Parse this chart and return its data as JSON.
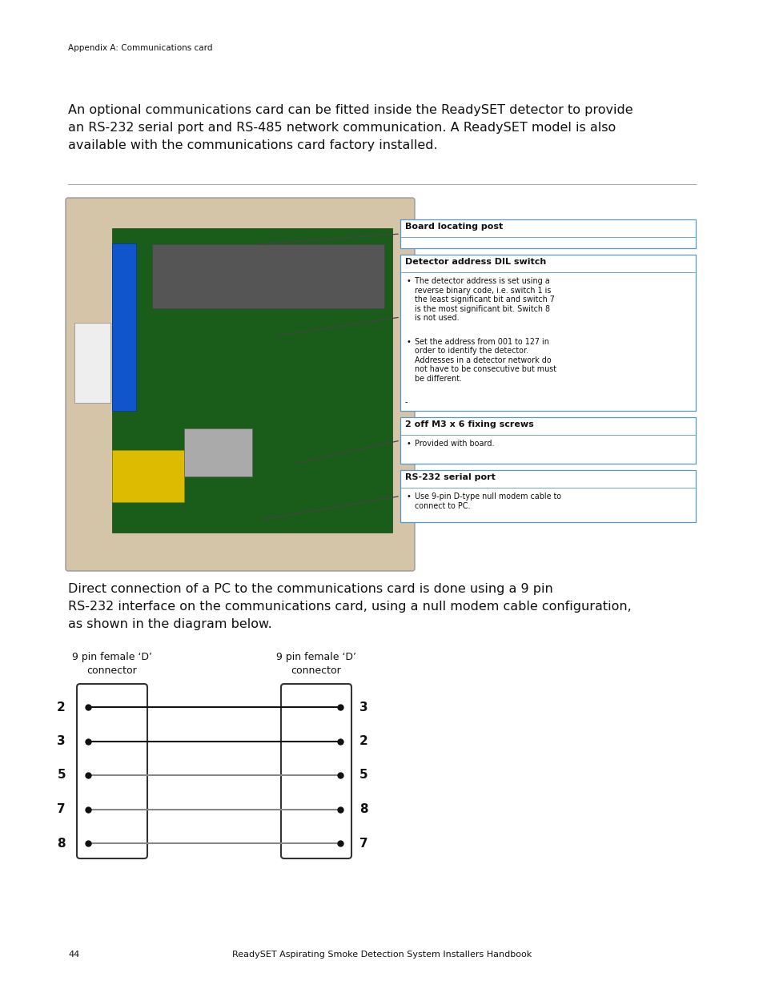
{
  "bg_color": "#ffffff",
  "page_width": 9.54,
  "page_height": 12.35,
  "dpi": 100,
  "header_text": "Appendix A: Communications card",
  "header_fontsize": 7.5,
  "intro_lines": [
    "An optional communications card can be fitted inside the ReadySET detector to provide",
    "an RS-232 serial port and RS-485 network communication. A ReadySET model is also",
    "available with the communications card factory installed."
  ],
  "intro_fontsize": 11.5,
  "direct_lines": [
    "Direct connection of a PC to the communications card is done using a 9 pin",
    "RS-232 interface on the communications card, using a null modem cable configuration,",
    "as shown in the diagram below."
  ],
  "direct_fontsize": 11.5,
  "box1_title": "Board locating post",
  "box2_title": "Detector address DIL switch",
  "box2_b1": "The detector address is set using a\nreverse binary code, i.e. switch 1 is\nthe least significant bit and switch 7\nis the most significant bit. Switch 8\nis not used.",
  "box2_b2": "Set the address from 001 to 127 in\norder to identify the detector.\nAddresses in a detector network do\nnot have to be consecutive but must\nbe different.",
  "box3_title": "2 off M3 x 6 fixing screws",
  "box3_b1": "Provided with board.",
  "box4_title": "RS-232 serial port",
  "box4_b1": "Use 9-pin D-type null modem cable to\nconnect to PC.",
  "footer_page": "44",
  "footer_title": "ReadySET Aspirating Smoke Detection System Installers Handbook",
  "footer_fontsize": 8,
  "left_pins": [
    "2",
    "3",
    "5",
    "7",
    "8"
  ],
  "right_pins": [
    "3",
    "2",
    "5",
    "8",
    "7"
  ],
  "wire_colors": [
    "#111111",
    "#111111",
    "#888888",
    "#888888",
    "#888888"
  ],
  "conn_label1": [
    "9 pin female ‘D’",
    "connector"
  ],
  "conn_label2": [
    "9 pin female ‘D’",
    "connector"
  ],
  "box_edge_color": "#5599cc",
  "text_color": "#111111"
}
